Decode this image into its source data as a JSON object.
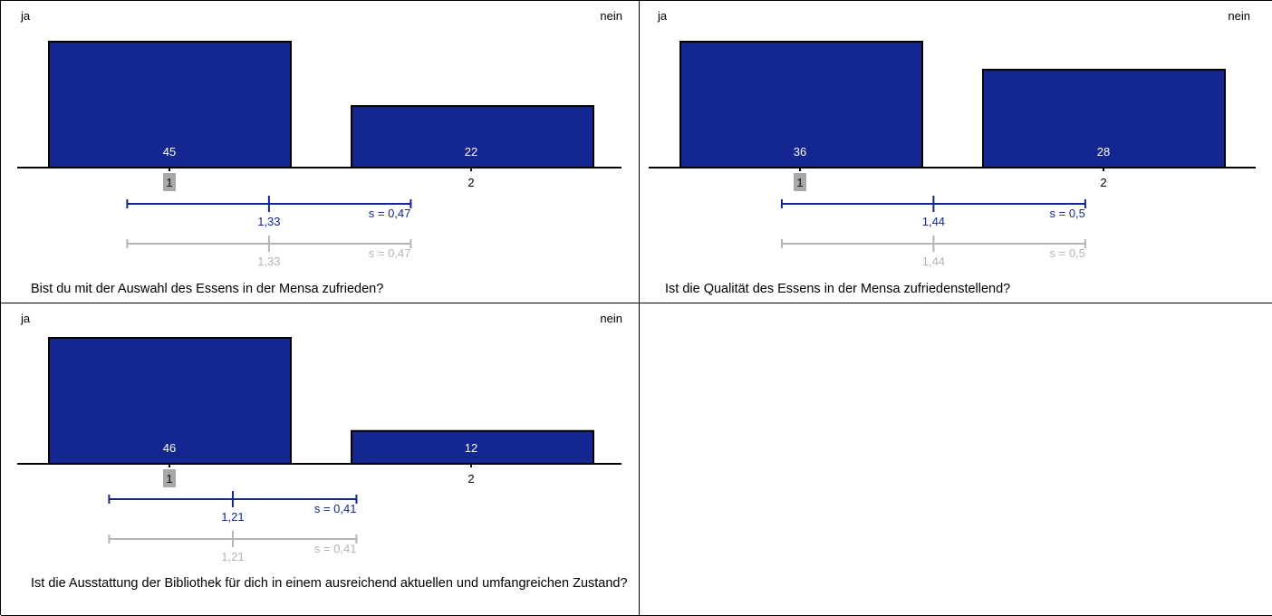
{
  "chart_data": [
    {
      "type": "bar",
      "scale_left_label": "ja",
      "scale_right_label": "nein",
      "categories": [
        "1",
        "2"
      ],
      "values": [
        45,
        22
      ],
      "highlighted_category": "1",
      "mean": 1.33,
      "mean_label": "1,33",
      "sd": 0.47,
      "sd_label": "s = 0,47",
      "comparison_mean": 1.33,
      "comparison_mean_label": "1,33",
      "comparison_sd": 0.47,
      "comparison_sd_label": "s = 0,47",
      "question": "Bist du mit der Auswahl des Essens in der Mensa zufrieden?"
    },
    {
      "type": "bar",
      "scale_left_label": "ja",
      "scale_right_label": "nein",
      "categories": [
        "1",
        "2"
      ],
      "values": [
        36,
        28
      ],
      "highlighted_category": "1",
      "mean": 1.44,
      "mean_label": "1,44",
      "sd": 0.5,
      "sd_label": "s = 0,5",
      "comparison_mean": 1.44,
      "comparison_mean_label": "1,44",
      "comparison_sd": 0.5,
      "comparison_sd_label": "s = 0,5",
      "question": "Ist die Qualität des Essens in der Mensa zufriedenstellend?"
    },
    {
      "type": "bar",
      "scale_left_label": "ja",
      "scale_right_label": "nein",
      "categories": [
        "1",
        "2"
      ],
      "values": [
        46,
        12
      ],
      "highlighted_category": "1",
      "mean": 1.21,
      "mean_label": "1,21",
      "sd": 0.41,
      "sd_label": "s = 0,41",
      "comparison_mean": 1.21,
      "comparison_mean_label": "1,21",
      "comparison_sd": 0.41,
      "comparison_sd_label": "s = 0,41",
      "question": "Ist die Ausstattung der Bibliothek für dich in einem ausreichend  aktuellen und umfangreichen Zustand?"
    }
  ],
  "colors": {
    "bar_fill": "#14268f",
    "bar_stroke": "#000000",
    "bar_label": "#ffffff",
    "mean_line": "#14268f",
    "comparison_line": "#b4b4b4",
    "highlight_box": "#a8a8a8"
  }
}
